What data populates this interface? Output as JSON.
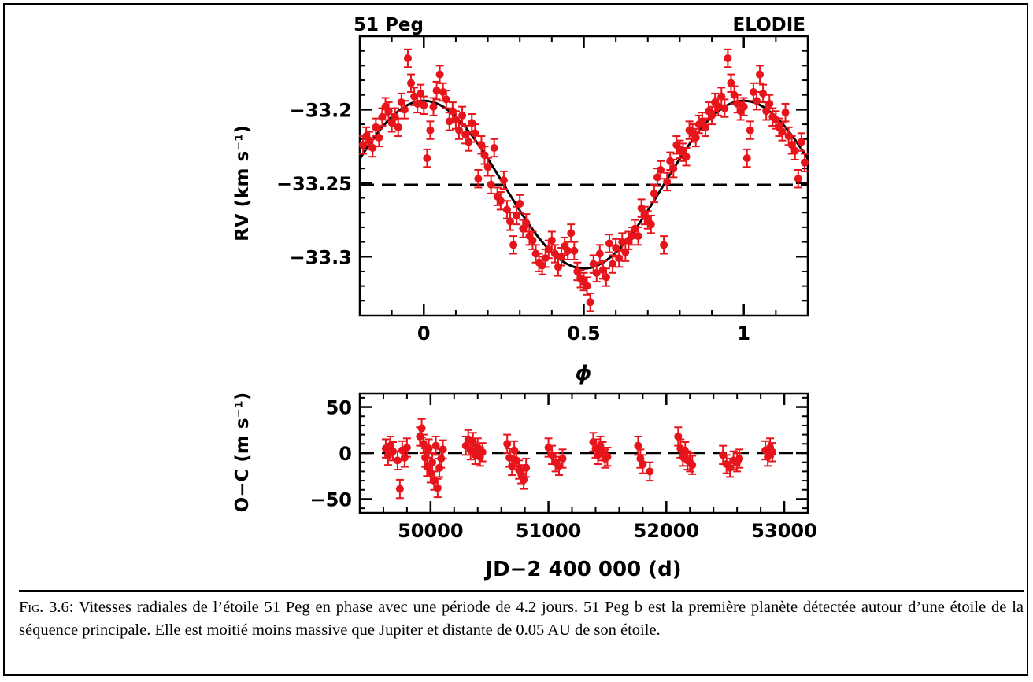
{
  "chart_data": [
    {
      "type": "scatter",
      "title_left": "51 Peg",
      "title_right": "ELODIE",
      "xlabel": "ϕ",
      "ylabel": "RV (km s⁻¹)",
      "xlim": [
        -0.2,
        1.2
      ],
      "ylim": [
        -33.34,
        -33.15
      ],
      "xticks": [
        {
          "value": 0,
          "label": "0"
        },
        {
          "value": 0.5,
          "label": "0.5"
        },
        {
          "value": 1,
          "label": "1"
        }
      ],
      "yticks": [
        {
          "value": -33.2,
          "label": "−33.2"
        },
        {
          "value": -33.25,
          "label": "−33.25"
        },
        {
          "value": -33.3,
          "label": "−33.3"
        }
      ],
      "model": {
        "form": "sinusoid",
        "period_phase": 1.0,
        "mean": -33.251,
        "semi_amplitude": 0.057,
        "max_at_phase": 0.0
      },
      "reference_line": {
        "y": -33.251,
        "style": "dashed"
      },
      "marker_color": "#e8141b",
      "points": [
        [
          -0.19,
          -33.224,
          0.006
        ],
        [
          -0.18,
          -33.218,
          0.006
        ],
        [
          -0.17,
          -33.221,
          0.006
        ],
        [
          -0.16,
          -33.226,
          0.006
        ],
        [
          -0.15,
          -33.212,
          0.006
        ],
        [
          -0.14,
          -33.219,
          0.006
        ],
        [
          -0.13,
          -33.205,
          0.006
        ],
        [
          -0.12,
          -33.198,
          0.006
        ],
        [
          -0.11,
          -33.201,
          0.006
        ],
        [
          -0.1,
          -33.209,
          0.006
        ],
        [
          -0.09,
          -33.205,
          0.006
        ],
        [
          -0.08,
          -33.212,
          0.006
        ],
        [
          -0.07,
          -33.195,
          0.006
        ],
        [
          -0.06,
          -33.2,
          0.006
        ],
        [
          -0.05,
          -33.165,
          0.006
        ],
        [
          -0.04,
          -33.182,
          0.006
        ],
        [
          -0.03,
          -33.191,
          0.006
        ],
        [
          -0.02,
          -33.196,
          0.006
        ],
        [
          -0.01,
          -33.189,
          0.006
        ],
        [
          0.0,
          -33.197,
          0.006
        ],
        [
          0.01,
          -33.233,
          0.006
        ],
        [
          0.02,
          -33.214,
          0.006
        ],
        [
          0.03,
          -33.198,
          0.006
        ],
        [
          0.04,
          -33.187,
          0.006
        ],
        [
          0.05,
          -33.176,
          0.006
        ],
        [
          0.06,
          -33.188,
          0.006
        ],
        [
          0.07,
          -33.193,
          0.006
        ],
        [
          0.08,
          -33.208,
          0.006
        ],
        [
          0.09,
          -33.201,
          0.006
        ],
        [
          0.1,
          -33.207,
          0.006
        ],
        [
          0.11,
          -33.214,
          0.006
        ],
        [
          0.12,
          -33.204,
          0.006
        ],
        [
          0.13,
          -33.217,
          0.006
        ],
        [
          0.14,
          -33.222,
          0.006
        ],
        [
          0.15,
          -33.209,
          0.006
        ],
        [
          0.16,
          -33.216,
          0.006
        ],
        [
          0.17,
          -33.247,
          0.006
        ],
        [
          0.18,
          -33.224,
          0.006
        ],
        [
          0.19,
          -33.231,
          0.006
        ],
        [
          0.2,
          -33.239,
          0.006
        ],
        [
          0.21,
          -33.251,
          0.006
        ],
        [
          0.22,
          -33.226,
          0.006
        ],
        [
          0.23,
          -33.259,
          0.006
        ],
        [
          0.24,
          -33.262,
          0.006
        ],
        [
          0.25,
          -33.248,
          0.006
        ],
        [
          0.26,
          -33.268,
          0.006
        ],
        [
          0.27,
          -33.276,
          0.006
        ],
        [
          0.28,
          -33.292,
          0.006
        ],
        [
          0.29,
          -33.272,
          0.006
        ],
        [
          0.3,
          -33.264,
          0.006
        ],
        [
          0.31,
          -33.281,
          0.006
        ],
        [
          0.32,
          -33.277,
          0.006
        ],
        [
          0.33,
          -33.286,
          0.006
        ],
        [
          0.34,
          -33.289,
          0.006
        ],
        [
          0.35,
          -33.298,
          0.006
        ],
        [
          0.36,
          -33.304,
          0.006
        ],
        [
          0.37,
          -33.306,
          0.006
        ],
        [
          0.38,
          -33.301,
          0.006
        ],
        [
          0.39,
          -33.295,
          0.006
        ],
        [
          0.4,
          -33.289,
          0.006
        ],
        [
          0.41,
          -33.298,
          0.006
        ],
        [
          0.42,
          -33.307,
          0.006
        ],
        [
          0.43,
          -33.3,
          0.006
        ],
        [
          0.44,
          -33.293,
          0.006
        ],
        [
          0.45,
          -33.296,
          0.006
        ],
        [
          0.46,
          -33.284,
          0.006
        ],
        [
          0.47,
          -33.296,
          0.006
        ],
        [
          0.48,
          -33.31,
          0.006
        ],
        [
          0.49,
          -33.315,
          0.006
        ],
        [
          0.5,
          -33.317,
          0.006
        ],
        [
          0.51,
          -33.32,
          0.006
        ],
        [
          0.52,
          -33.331,
          0.006
        ],
        [
          0.53,
          -33.305,
          0.006
        ],
        [
          0.54,
          -33.311,
          0.006
        ],
        [
          0.55,
          -33.298,
          0.006
        ],
        [
          0.56,
          -33.309,
          0.006
        ],
        [
          0.57,
          -33.314,
          0.006
        ],
        [
          0.58,
          -33.291,
          0.006
        ],
        [
          0.59,
          -33.305,
          0.006
        ],
        [
          0.6,
          -33.294,
          0.006
        ],
        [
          0.61,
          -33.301,
          0.006
        ],
        [
          0.62,
          -33.29,
          0.006
        ],
        [
          0.63,
          -33.297,
          0.006
        ],
        [
          0.64,
          -33.289,
          0.006
        ],
        [
          0.65,
          -33.286,
          0.006
        ],
        [
          0.66,
          -33.281,
          0.006
        ],
        [
          0.67,
          -33.286,
          0.006
        ],
        [
          0.68,
          -33.267,
          0.006
        ],
        [
          0.69,
          -33.272,
          0.006
        ],
        [
          0.7,
          -33.275,
          0.006
        ],
        [
          0.71,
          -33.278,
          0.006
        ],
        [
          0.72,
          -33.257,
          0.006
        ],
        [
          0.73,
          -33.246,
          0.006
        ],
        [
          0.74,
          -33.241,
          0.006
        ],
        [
          0.75,
          -33.292,
          0.006
        ],
        [
          0.76,
          -33.249,
          0.006
        ],
        [
          0.77,
          -33.235,
          0.006
        ],
        [
          0.78,
          -33.24,
          0.006
        ],
        [
          0.79,
          -33.224,
          0.006
        ],
        [
          0.8,
          -33.227,
          0.006
        ],
        [
          0.81,
          -33.229,
          0.006
        ],
        [
          0.82,
          -33.232,
          0.006
        ],
        [
          0.83,
          -33.214,
          0.006
        ],
        [
          0.84,
          -33.216,
          0.006
        ],
        [
          0.85,
          -33.219,
          0.006
        ],
        [
          0.86,
          -33.21,
          0.006
        ],
        [
          0.87,
          -33.208,
          0.006
        ],
        [
          0.88,
          -33.212,
          0.006
        ],
        [
          0.89,
          -33.201,
          0.006
        ],
        [
          0.9,
          -33.204,
          0.006
        ],
        [
          0.91,
          -33.195,
          0.006
        ],
        [
          0.92,
          -33.198,
          0.006
        ],
        [
          0.93,
          -33.191,
          0.006
        ],
        [
          0.94,
          -33.199,
          0.006
        ],
        [
          0.95,
          -33.165,
          0.006
        ],
        [
          0.96,
          -33.182,
          0.006
        ],
        [
          0.97,
          -33.19,
          0.006
        ],
        [
          0.98,
          -33.196,
          0.006
        ],
        [
          0.99,
          -33.201,
          0.006
        ],
        [
          1.0,
          -33.198,
          0.006
        ],
        [
          1.01,
          -33.233,
          0.006
        ],
        [
          1.02,
          -33.214,
          0.006
        ],
        [
          1.03,
          -33.188,
          0.006
        ],
        [
          1.04,
          -33.194,
          0.006
        ],
        [
          1.05,
          -33.176,
          0.006
        ],
        [
          1.06,
          -33.189,
          0.006
        ],
        [
          1.07,
          -33.201,
          0.006
        ],
        [
          1.08,
          -33.196,
          0.006
        ],
        [
          1.09,
          -33.205,
          0.006
        ],
        [
          1.1,
          -33.207,
          0.006
        ],
        [
          1.11,
          -33.212,
          0.006
        ],
        [
          1.12,
          -33.215,
          0.006
        ],
        [
          1.13,
          -33.202,
          0.006
        ],
        [
          1.14,
          -33.218,
          0.006
        ],
        [
          1.15,
          -33.224,
          0.006
        ],
        [
          1.16,
          -33.228,
          0.006
        ],
        [
          1.17,
          -33.247,
          0.006
        ],
        [
          1.18,
          -33.222,
          0.006
        ],
        [
          1.19,
          -33.236,
          0.006
        ]
      ]
    },
    {
      "type": "scatter",
      "xlabel": "JD−2 400 000 (d)",
      "ylabel": "O−C (m s⁻¹)",
      "xlim": [
        49400,
        53200
      ],
      "ylim": [
        -65,
        65
      ],
      "xticks": [
        {
          "value": 50000,
          "label": "50000"
        },
        {
          "value": 51000,
          "label": "51000"
        },
        {
          "value": 52000,
          "label": "52000"
        },
        {
          "value": 53000,
          "label": "53000"
        }
      ],
      "yticks": [
        {
          "value": 50,
          "label": "50"
        },
        {
          "value": 0,
          "label": "0"
        },
        {
          "value": -50,
          "label": "−50"
        }
      ],
      "reference_line": {
        "y": 0,
        "style": "dashed"
      },
      "marker_color": "#e8141b",
      "points": [
        [
          49620,
          5,
          10
        ],
        [
          49640,
          -3,
          10
        ],
        [
          49660,
          8,
          10
        ],
        [
          49680,
          2,
          10
        ],
        [
          49720,
          -8,
          10
        ],
        [
          49740,
          -39,
          10
        ],
        [
          49760,
          3,
          10
        ],
        [
          49780,
          -5,
          10
        ],
        [
          49800,
          6,
          10
        ],
        [
          49910,
          18,
          10
        ],
        [
          49925,
          27,
          10
        ],
        [
          49940,
          10,
          10
        ],
        [
          49955,
          -5,
          10
        ],
        [
          49970,
          -15,
          10
        ],
        [
          49985,
          5,
          10
        ],
        [
          50000,
          -22,
          10
        ],
        [
          50015,
          -10,
          10
        ],
        [
          50030,
          -30,
          10
        ],
        [
          50045,
          8,
          10
        ],
        [
          50060,
          -38,
          10
        ],
        [
          50075,
          -16,
          10
        ],
        [
          50090,
          -6,
          10
        ],
        [
          50105,
          4,
          10
        ],
        [
          50300,
          8,
          10
        ],
        [
          50320,
          15,
          10
        ],
        [
          50340,
          3,
          10
        ],
        [
          50360,
          12,
          10
        ],
        [
          50380,
          -2,
          10
        ],
        [
          50400,
          6,
          10
        ],
        [
          50420,
          -4,
          10
        ],
        [
          50440,
          1,
          10
        ],
        [
          50650,
          10,
          10
        ],
        [
          50670,
          -5,
          10
        ],
        [
          50690,
          -14,
          10
        ],
        [
          50710,
          3,
          10
        ],
        [
          50730,
          -8,
          10
        ],
        [
          50750,
          -18,
          10
        ],
        [
          50770,
          -23,
          10
        ],
        [
          50790,
          -29,
          10
        ],
        [
          50810,
          -16,
          10
        ],
        [
          51000,
          6,
          10
        ],
        [
          51030,
          -2,
          10
        ],
        [
          51060,
          -10,
          10
        ],
        [
          51090,
          -14,
          10
        ],
        [
          51120,
          -6,
          10
        ],
        [
          51380,
          12,
          10
        ],
        [
          51400,
          5,
          10
        ],
        [
          51420,
          -2,
          10
        ],
        [
          51440,
          8,
          10
        ],
        [
          51460,
          2,
          10
        ],
        [
          51480,
          -6,
          10
        ],
        [
          51500,
          -4,
          10
        ],
        [
          51760,
          8,
          10
        ],
        [
          51780,
          -6,
          10
        ],
        [
          51800,
          -12,
          10
        ],
        [
          51860,
          -20,
          10
        ],
        [
          52100,
          18,
          10
        ],
        [
          52120,
          5,
          10
        ],
        [
          52140,
          -4,
          10
        ],
        [
          52160,
          2,
          10
        ],
        [
          52180,
          -8,
          10
        ],
        [
          52200,
          -10,
          10
        ],
        [
          52220,
          -13,
          10
        ],
        [
          52480,
          -2,
          10
        ],
        [
          52510,
          -12,
          10
        ],
        [
          52540,
          -16,
          10
        ],
        [
          52570,
          -8,
          10
        ],
        [
          52600,
          -10,
          10
        ],
        [
          52620,
          -6,
          10
        ],
        [
          52840,
          3,
          10
        ],
        [
          52860,
          -4,
          10
        ],
        [
          52880,
          6,
          10
        ],
        [
          52900,
          1,
          10
        ]
      ]
    }
  ],
  "caption": {
    "label": "Fig. 3.6:",
    "text": " Vitesses radiales de l’étoile 51 Peg en phase avec une période de 4.2 jours. 51 Peg b est la première planète détectée autour d’une étoile de la séquence principale. Elle est moitié moins massive que Jupiter et distante de 0.05 AU de son étoile."
  }
}
